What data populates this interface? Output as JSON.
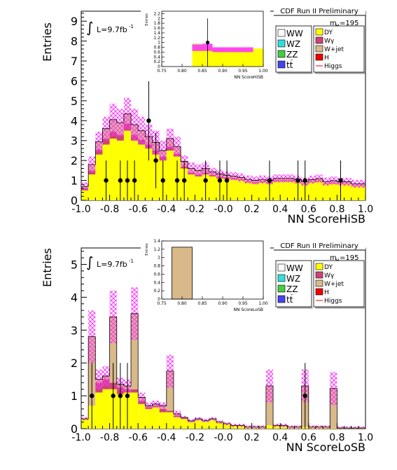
{
  "colors": {
    "dy": "#ffff00",
    "wgamma": "#cc4477",
    "wjet": "#d9b98a",
    "higgs_band": "#ff33ff",
    "h": "#ee0000",
    "ww": "#ffffff",
    "wz": "#33dddd",
    "zz": "#44cc44",
    "ttbar": "#4444ee",
    "axis": "#000000"
  },
  "chart_data": [
    {
      "id": "top",
      "type": "bar",
      "title": "CDF Run II Preliminary",
      "mass_label": "m",
      "mass_sub": "H",
      "mass_value": "=195",
      "lumi_prefix": "L=9.7fb",
      "lumi_sup": "-1",
      "xlabel": "NN ScoreHiSB",
      "ylabel": "Entries",
      "xlim": [
        -1.0,
        1.0
      ],
      "ylim": [
        0,
        9.5
      ],
      "xticks": [
        "-1.0",
        "-0.8",
        "-0.6",
        "-0.4",
        "-0.2",
        "-0.0",
        "0.2",
        "0.4",
        "0.6",
        "0.8",
        "1.0"
      ],
      "yticks": [
        "0",
        "1",
        "2",
        "3",
        "4",
        "5",
        "6",
        "7",
        "8",
        "9"
      ],
      "legend_left": [
        "WW",
        "WZ",
        "ZZ",
        "tt"
      ],
      "legend_right": [
        "DY",
        "Wγ",
        "W+jet",
        "H",
        "Higgs"
      ],
      "bins": 40,
      "dy": [
        0.5,
        1.3,
        2.3,
        2.8,
        3.1,
        3.0,
        3.5,
        3.0,
        2.8,
        2.6,
        2.3,
        2.0,
        2.5,
        2.2,
        1.6,
        1.3,
        1.2,
        1.3,
        1.2,
        1.1,
        1.1,
        1.05,
        1.0,
        0.9,
        0.85,
        0.9,
        0.85,
        0.95,
        0.95,
        0.95,
        0.9,
        0.8,
        0.9,
        0.95,
        0.8,
        0.85,
        0.8,
        0.8,
        0.7,
        0.7
      ],
      "wgamma": [
        0.1,
        0.2,
        0.25,
        0.3,
        0.35,
        0.3,
        0.35,
        0.3,
        0.25,
        0.2,
        0.2,
        0.2,
        0.2,
        0.15,
        0.1,
        0.1,
        0.1,
        0.1,
        0.08,
        0.08,
        0.06,
        0.06,
        0.05,
        0.05,
        0.05,
        0.05,
        0.05,
        0.05,
        0.05,
        0.05,
        0.04,
        0.04,
        0.04,
        0.04,
        0.04,
        0.04,
        0.03,
        0.03,
        0.03,
        0.03
      ],
      "wjet": [
        0.1,
        0.3,
        0.4,
        0.5,
        0.6,
        0.6,
        0.5,
        0.5,
        0.45,
        0.4,
        0.4,
        0.3,
        0.4,
        0.35,
        0.25,
        0.2,
        0.2,
        0.2,
        0.15,
        0.15,
        0.1,
        0.1,
        0.1,
        0.1,
        0.1,
        0.1,
        0.1,
        0.1,
        0.1,
        0.1,
        0.1,
        0.1,
        0.1,
        0.1,
        0.1,
        0.1,
        0.1,
        0.1,
        0.1,
        0.1
      ],
      "band": [
        0.2,
        0.4,
        0.5,
        0.6,
        0.8,
        0.7,
        0.8,
        0.8,
        0.7,
        0.6,
        0.6,
        0.5,
        0.5,
        0.5,
        0.3,
        0.3,
        0.3,
        0.3,
        0.2,
        0.2,
        0.2,
        0.2,
        0.2,
        0.2,
        0.2,
        0.2,
        0.2,
        0.2,
        0.2,
        0.2,
        0.2,
        0.2,
        0.2,
        0.2,
        0.2,
        0.2,
        0.2,
        0.2,
        0.2,
        0.2
      ],
      "data_points": [
        {
          "x": -0.825,
          "y": 1,
          "err": 1.0
        },
        {
          "x": -0.725,
          "y": 1,
          "err": 1.0
        },
        {
          "x": -0.675,
          "y": 1,
          "err": 1.0
        },
        {
          "x": -0.625,
          "y": 1,
          "err": 1.0
        },
        {
          "x": -0.525,
          "y": 4,
          "err": 2.0
        },
        {
          "x": -0.475,
          "y": 2,
          "err": 1.4
        },
        {
          "x": -0.425,
          "y": 1,
          "err": 1.0
        },
        {
          "x": -0.325,
          "y": 1,
          "err": 1.0
        },
        {
          "x": -0.275,
          "y": 1,
          "err": 1.0
        },
        {
          "x": -0.125,
          "y": 1,
          "err": 1.0
        },
        {
          "x": -0.025,
          "y": 1,
          "err": 1.0
        },
        {
          "x": 0.025,
          "y": 1,
          "err": 1.0
        },
        {
          "x": 0.325,
          "y": 1,
          "err": 1.0
        },
        {
          "x": 0.525,
          "y": 1,
          "err": 1.0
        },
        {
          "x": 0.575,
          "y": 1,
          "err": 1.0
        },
        {
          "x": 0.825,
          "y": 1,
          "err": 1.0
        }
      ],
      "inset": {
        "xlabel": "NN ScoreHiSB",
        "ylabel": "Entries",
        "xlim": [
          0.75,
          1.0
        ],
        "ylim": [
          0,
          2.3
        ],
        "xticks": [
          "0.75",
          "0.80",
          "0.85",
          "0.90",
          "0.95",
          "1.00"
        ],
        "yticks": [
          "0",
          "0.2",
          "0.4",
          "0.6",
          "0.8",
          "1",
          "1.2",
          "1.4",
          "1.6",
          "1.8",
          "2",
          "2.2"
        ],
        "bins": [
          [
            0.75,
            0.825,
            0.0
          ],
          [
            0.825,
            0.85,
            0.85
          ],
          [
            0.85,
            0.875,
            0.85
          ],
          [
            0.875,
            0.975,
            0.75
          ],
          [
            0.975,
            1.0,
            0.75
          ]
        ],
        "band": [
          [
            0.825,
            0.85,
            0.65,
            0.9
          ],
          [
            0.85,
            0.875,
            0.65,
            0.95
          ],
          [
            0.875,
            0.975,
            0.6,
            0.8
          ]
        ],
        "data_points": [
          {
            "x": 0.863,
            "y": 1.0,
            "err": 1.0
          }
        ]
      }
    },
    {
      "id": "bottom",
      "type": "bar",
      "title": "CDF Run II Preliminary",
      "mass_label": "m",
      "mass_sub": "H",
      "mass_value": "=195",
      "lumi_prefix": "L=9.7fb",
      "lumi_sup": "-1",
      "xlabel": "NN ScoreLoSB",
      "ylabel": "Entries",
      "xlim": [
        -1.0,
        1.0
      ],
      "ylim": [
        0,
        5.5
      ],
      "xticks": [
        "-1.0",
        "-0.8",
        "-0.6",
        "-0.4",
        "-0.2",
        "-0.0",
        "0.2",
        "0.4",
        "0.6",
        "0.8",
        "1.0"
      ],
      "yticks": [
        "0",
        "1",
        "2",
        "3",
        "4",
        "5"
      ],
      "legend_left": [
        "WW",
        "WZ",
        "ZZ",
        "tt"
      ],
      "legend_right": [
        "DY",
        "Wγ",
        "W+jet",
        "H",
        "Higgs"
      ],
      "bins": 40,
      "dy": [
        0.3,
        0.7,
        1.1,
        1.2,
        1.2,
        1.05,
        1.1,
        1.1,
        0.75,
        0.6,
        0.65,
        0.5,
        0.5,
        0.35,
        0.3,
        0.2,
        0.25,
        0.2,
        0.25,
        0.2,
        0.15,
        0.1,
        0.1,
        0.05,
        0.05,
        0.05,
        0.1,
        0.1,
        0.05,
        0.05,
        0.05,
        0.05,
        0.05,
        0.05,
        0.05,
        0.02,
        0.02,
        0.02,
        0.02,
        0.02
      ],
      "wgamma": [
        0.0,
        0.0,
        0.3,
        0.3,
        0.2,
        0.2,
        0.1,
        0.1,
        0.1,
        0.05,
        0.05,
        0.1,
        0.05,
        0.05,
        0.02,
        0.02,
        0.0,
        0.0,
        0.0,
        0.0,
        0.0,
        0.0,
        0.0,
        0.0,
        0.0,
        0.0,
        0.0,
        0.0,
        0.0,
        0.0,
        0.0,
        0.0,
        0.0,
        0.0,
        0.0,
        0.0,
        0.0,
        0.0,
        0.0,
        0.0
      ],
      "wjet": [
        0.0,
        2.1,
        0.1,
        0.1,
        2.0,
        0.1,
        0.1,
        2.3,
        0.1,
        0.05,
        0.05,
        0.1,
        1.2,
        0.05,
        0.02,
        0.02,
        0.05,
        0.05,
        0.05,
        0.0,
        0.0,
        0.0,
        0.0,
        0.0,
        0.0,
        0.0,
        1.2,
        0.0,
        0.05,
        0.0,
        0.0,
        1.25,
        0.0,
        0.0,
        0.0,
        1.2,
        0.0,
        0.0,
        0.0,
        0.0
      ],
      "band": [
        0.05,
        0.8,
        0.3,
        0.3,
        0.8,
        0.2,
        0.2,
        0.8,
        0.15,
        0.1,
        0.1,
        0.1,
        0.5,
        0.1,
        0.05,
        0.05,
        0.05,
        0.05,
        0.05,
        0.05,
        0.05,
        0.05,
        0.05,
        0.05,
        0.05,
        0.05,
        0.5,
        0.05,
        0.05,
        0.05,
        0.05,
        0.5,
        0.05,
        0.05,
        0.05,
        0.5,
        0.05,
        0.05,
        0.05,
        0.05
      ],
      "data_points": [
        {
          "x": -0.925,
          "y": 1,
          "err": 1.0
        },
        {
          "x": -0.775,
          "y": 1,
          "err": 1.0
        },
        {
          "x": -0.725,
          "y": 1,
          "err": 1.0
        },
        {
          "x": -0.675,
          "y": 1,
          "err": 1.0
        },
        {
          "x": 0.575,
          "y": 1,
          "err": 1.0
        }
      ],
      "inset": {
        "xlabel": "NN ScoreLoSB",
        "ylabel": "Entries",
        "xlim": [
          0.75,
          1.0
        ],
        "ylim": [
          0,
          1.4
        ],
        "xticks": [
          "0.75",
          "0.80",
          "0.85",
          "0.90",
          "0.95",
          "1.00"
        ],
        "yticks": [
          "0",
          "0.2",
          "0.4",
          "0.6",
          "0.8",
          "1",
          "1.2",
          "1.4"
        ],
        "bins": [
          [
            0.775,
            0.825,
            1.25
          ]
        ],
        "band": [],
        "data_points": []
      }
    }
  ]
}
